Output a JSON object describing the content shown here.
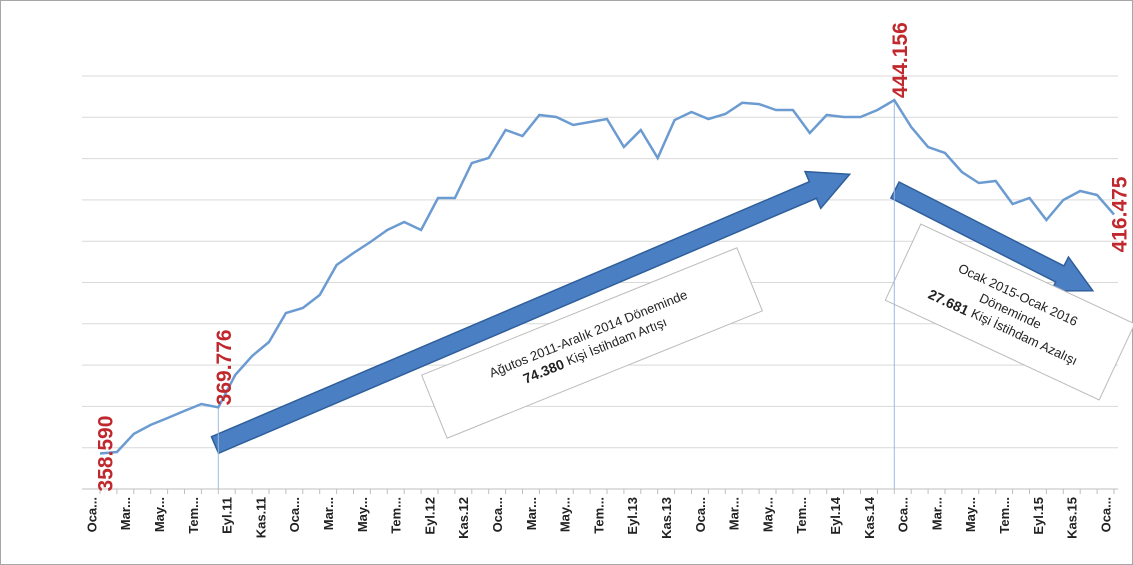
{
  "chart_data": {
    "type": "line",
    "categories": [
      "Oca...",
      null,
      "Mar...",
      null,
      "May...",
      null,
      "Tem...",
      null,
      "Eyl.11",
      null,
      "Kas.11",
      null,
      "Oca...",
      null,
      "Mar...",
      null,
      "May...",
      null,
      "Tem...",
      null,
      "Eyl.12",
      null,
      "Kas.12",
      null,
      "Oca...",
      null,
      "Mar...",
      null,
      "May...",
      null,
      "Tem...",
      null,
      "Eyl.13",
      null,
      "Kas.13",
      null,
      "Oca...",
      null,
      "Mar...",
      null,
      "May...",
      null,
      "Tem...",
      null,
      "Eyl.14",
      null,
      "Kas.14",
      null,
      "Oca...",
      null,
      "Mar...",
      null,
      "May...",
      null,
      "Tem...",
      null,
      "Eyl.15",
      null,
      "Kas.15",
      null,
      "Oca..."
    ],
    "values": [
      358590,
      358970,
      363330,
      365510,
      367200,
      368900,
      370590,
      369776,
      377610,
      382210,
      385600,
      392620,
      393830,
      396980,
      404240,
      407150,
      409810,
      412720,
      414650,
      412720,
      420470,
      420470,
      428940,
      430150,
      436930,
      435470,
      440560,
      440070,
      438140,
      438860,
      439590,
      432810,
      436930,
      430150,
      439350,
      441280,
      439590,
      440800,
      443500,
      443200,
      441770,
      441770,
      436200,
      440560,
      440070,
      440070,
      441770,
      444156,
      437650,
      432810,
      431360,
      426760,
      424100,
      424580,
      419010,
      420470,
      415140,
      419980,
      422160,
      421190,
      416475
    ],
    "value_labels": [
      "358.590",
      null,
      null,
      null,
      null,
      null,
      null,
      "369.776",
      null,
      null,
      null,
      null,
      null,
      null,
      null,
      null,
      null,
      null,
      null,
      null,
      null,
      null,
      null,
      null,
      null,
      null,
      null,
      null,
      null,
      null,
      null,
      null,
      null,
      null,
      null,
      null,
      null,
      null,
      null,
      null,
      null,
      null,
      null,
      null,
      null,
      null,
      null,
      "444.156",
      null,
      null,
      null,
      null,
      null,
      null,
      null,
      null,
      null,
      null,
      null,
      null,
      "416.475"
    ],
    "color": "#6b9bd1",
    "label_color": "#c0282d",
    "ylim": [
      350000,
      450000
    ],
    "yticks": [
      350000,
      360000,
      370000,
      380000,
      390000,
      400000,
      410000,
      420000,
      430000,
      440000,
      450000
    ],
    "grid": true,
    "annotations": [
      {
        "lines": [
          "Ağutos 2011-Aralık 2014 Döneminde"
        ],
        "number": "74.380",
        "suffix": "Kişi İstihdam Artışı"
      },
      {
        "lines": [
          "Ocak 2015-Ocak 2016",
          "Döneminde"
        ],
        "number": "27.681",
        "suffix": "Kişi İstihdam Azalışı"
      }
    ]
  }
}
